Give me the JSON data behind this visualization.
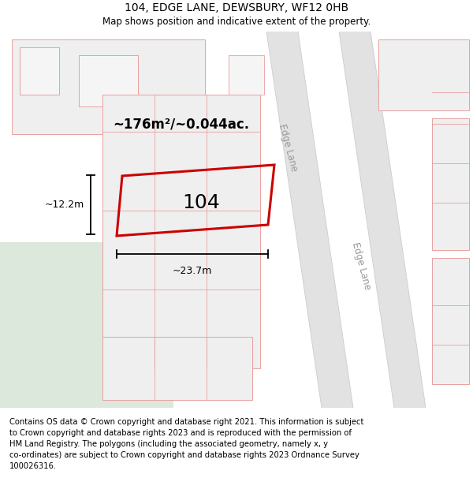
{
  "title": "104, EDGE LANE, DEWSBURY, WF12 0HB",
  "subtitle": "Map shows position and indicative extent of the property.",
  "footer": "Contains OS data © Crown copyright and database right 2021. This information is subject\nto Crown copyright and database rights 2023 and is reproduced with the permission of\nHM Land Registry. The polygons (including the associated geometry, namely x, y\nco-ordinates) are subject to Crown copyright and database rights 2023 Ordnance Survey\n100026316.",
  "background_color": "#ffffff",
  "area_label": "~176m²/~0.044ac.",
  "property_label": "104",
  "width_label": "~23.7m",
  "height_label": "~12.2m",
  "red_color": "#e8000000",
  "edge_lane_label": "Edge Lane",
  "title_fontsize": 10,
  "subtitle_fontsize": 8.5,
  "footer_fontsize": 7.2,
  "map_facecolor": "#f9f9f9",
  "building_face": "#efefef",
  "building_edge": "#e8a0a0",
  "road_face": "#e2e2e2",
  "green_face": "#dce8dc"
}
